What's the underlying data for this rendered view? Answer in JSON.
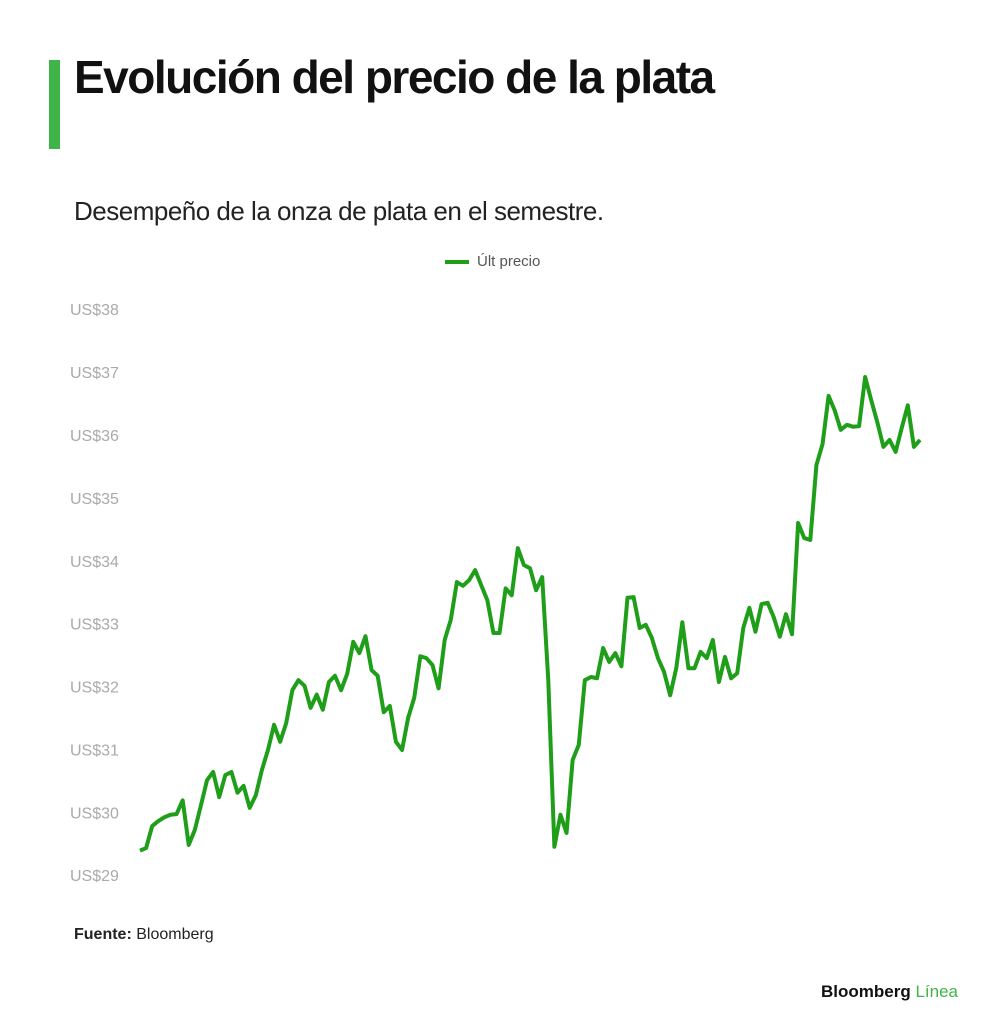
{
  "chart_data": {
    "type": "line",
    "title": "Evolución del precio de la plata",
    "subtitle": "Desempeño de la onza de plata en el semestre.",
    "source_label": "Fuente:",
    "source": "Bloomberg",
    "brand": "Bloomberg",
    "brand_accent": "Línea",
    "legend": "top",
    "series": [
      {
        "name": "Últ precio",
        "color": "#1f9e1a",
        "values": [
          29.42,
          29.46,
          29.81,
          29.89,
          29.95,
          29.99,
          30.0,
          30.22,
          29.51,
          29.75,
          30.14,
          30.54,
          30.67,
          30.27,
          30.62,
          30.67,
          30.34,
          30.45,
          30.1,
          30.3,
          30.7,
          31.02,
          31.42,
          31.15,
          31.45,
          31.97,
          32.13,
          32.04,
          31.69,
          31.9,
          31.66,
          32.1,
          32.2,
          31.97,
          32.23,
          32.74,
          32.56,
          32.83,
          32.29,
          32.2,
          31.62,
          31.72,
          31.15,
          31.02,
          31.53,
          31.85,
          32.51,
          32.48,
          32.37,
          32.0,
          32.77,
          33.09,
          33.69,
          33.63,
          33.72,
          33.88,
          33.64,
          33.4,
          32.88,
          32.88,
          33.59,
          33.48,
          34.23,
          33.96,
          33.91,
          33.56,
          33.77,
          32.13,
          29.48,
          29.99,
          29.7,
          30.86,
          31.1,
          32.13,
          32.18,
          32.16,
          32.64,
          32.42,
          32.56,
          32.35,
          33.44,
          33.45,
          32.96,
          33.01,
          32.8,
          32.48,
          32.26,
          31.89,
          32.32,
          33.05,
          32.32,
          32.32,
          32.58,
          32.48,
          32.77,
          32.1,
          32.5,
          32.16,
          32.24,
          32.96,
          33.28,
          32.9,
          33.34,
          33.36,
          33.13,
          32.82,
          33.18,
          32.86,
          34.63,
          34.39,
          34.36,
          35.55,
          35.88,
          36.65,
          36.42,
          36.11,
          36.19,
          36.16,
          36.17,
          36.95,
          36.58,
          36.23,
          35.84,
          35.95,
          35.76,
          36.14,
          36.5,
          35.84,
          35.95
        ]
      }
    ],
    "ylim": [
      29,
      38
    ],
    "yticks": [
      {
        "value": 29,
        "label": "US$29"
      },
      {
        "value": 30,
        "label": "US$30"
      },
      {
        "value": 31,
        "label": "US$31"
      },
      {
        "value": 32,
        "label": "US$32"
      },
      {
        "value": 33,
        "label": "US$33"
      },
      {
        "value": 34,
        "label": "US$34"
      },
      {
        "value": 35,
        "label": "US$35"
      },
      {
        "value": 36,
        "label": "US$36"
      },
      {
        "value": 37,
        "label": "US$37"
      },
      {
        "value": 38,
        "label": "US$38"
      }
    ],
    "grid": false
  }
}
